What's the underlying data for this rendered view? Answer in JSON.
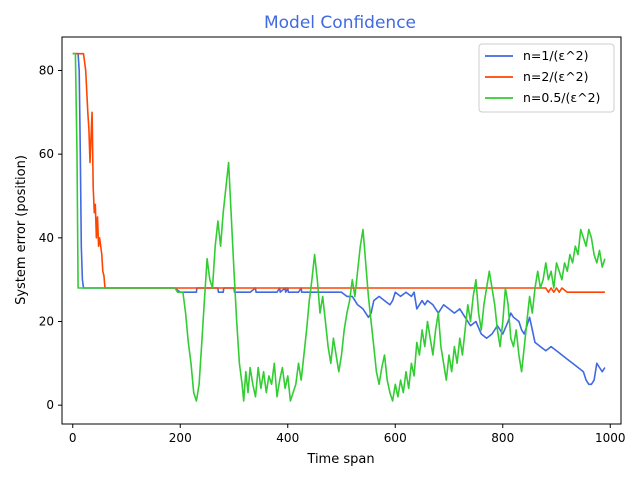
{
  "chart_data": {
    "type": "line",
    "title": "Model Confidence",
    "title_color": "#4169e1",
    "xlabel": "Time span",
    "ylabel": "System error (position)",
    "xlim": [
      -20,
      1020
    ],
    "ylim": [
      -4.5,
      88
    ],
    "xticks": [
      0,
      200,
      400,
      600,
      800,
      1000
    ],
    "yticks": [
      0,
      20,
      40,
      60,
      80
    ],
    "grid": false,
    "legend_position": "top-right",
    "series": [
      {
        "name": "n=1/(ε^2)",
        "color": "#4169e1",
        "points": [
          [
            0,
            84
          ],
          [
            10,
            84
          ],
          [
            12,
            80
          ],
          [
            14,
            60
          ],
          [
            16,
            38
          ],
          [
            18,
            30
          ],
          [
            20,
            28
          ],
          [
            190,
            28
          ],
          [
            200,
            27
          ],
          [
            230,
            27
          ],
          [
            231,
            28
          ],
          [
            270,
            28
          ],
          [
            271,
            27
          ],
          [
            280,
            27
          ],
          [
            281,
            28
          ],
          [
            300,
            28
          ],
          [
            301,
            27
          ],
          [
            330,
            27
          ],
          [
            340,
            28
          ],
          [
            341,
            27
          ],
          [
            380,
            27
          ],
          [
            385,
            28
          ],
          [
            386,
            27
          ],
          [
            395,
            28
          ],
          [
            396,
            27
          ],
          [
            400,
            28
          ],
          [
            401,
            27
          ],
          [
            420,
            27
          ],
          [
            425,
            28
          ],
          [
            426,
            27
          ],
          [
            500,
            27
          ],
          [
            510,
            26
          ],
          [
            520,
            26
          ],
          [
            530,
            24
          ],
          [
            540,
            23
          ],
          [
            550,
            21
          ],
          [
            555,
            22
          ],
          [
            560,
            25
          ],
          [
            570,
            26
          ],
          [
            580,
            25
          ],
          [
            590,
            24
          ],
          [
            595,
            25
          ],
          [
            600,
            27
          ],
          [
            610,
            26
          ],
          [
            620,
            27
          ],
          [
            630,
            26
          ],
          [
            635,
            27
          ],
          [
            640,
            23
          ],
          [
            650,
            25
          ],
          [
            655,
            24
          ],
          [
            660,
            25
          ],
          [
            670,
            24
          ],
          [
            680,
            22
          ],
          [
            690,
            24
          ],
          [
            700,
            23
          ],
          [
            710,
            22
          ],
          [
            720,
            23
          ],
          [
            730,
            21
          ],
          [
            740,
            19
          ],
          [
            750,
            20
          ],
          [
            760,
            17
          ],
          [
            770,
            16
          ],
          [
            780,
            17
          ],
          [
            790,
            19
          ],
          [
            800,
            17
          ],
          [
            810,
            20
          ],
          [
            815,
            22
          ],
          [
            820,
            21
          ],
          [
            830,
            20
          ],
          [
            835,
            18
          ],
          [
            840,
            17
          ],
          [
            845,
            19
          ],
          [
            850,
            21
          ],
          [
            860,
            15
          ],
          [
            870,
            14
          ],
          [
            880,
            13
          ],
          [
            890,
            14
          ],
          [
            900,
            13
          ],
          [
            910,
            12
          ],
          [
            920,
            11
          ],
          [
            930,
            10
          ],
          [
            940,
            9
          ],
          [
            950,
            8
          ],
          [
            955,
            6
          ],
          [
            960,
            5
          ],
          [
            965,
            5
          ],
          [
            970,
            6
          ],
          [
            975,
            10
          ],
          [
            980,
            9
          ],
          [
            985,
            8
          ],
          [
            990,
            9
          ]
        ]
      },
      {
        "name": "n=2/(ε^2)",
        "color": "#ff4500",
        "points": [
          [
            0,
            84
          ],
          [
            20,
            84
          ],
          [
            24,
            80
          ],
          [
            28,
            70
          ],
          [
            30,
            66
          ],
          [
            32,
            58
          ],
          [
            34,
            64
          ],
          [
            36,
            70
          ],
          [
            38,
            52
          ],
          [
            40,
            46
          ],
          [
            42,
            48
          ],
          [
            44,
            40
          ],
          [
            46,
            45
          ],
          [
            48,
            38
          ],
          [
            50,
            40
          ],
          [
            52,
            38
          ],
          [
            54,
            36
          ],
          [
            56,
            32
          ],
          [
            58,
            31
          ],
          [
            60,
            28
          ],
          [
            200,
            28
          ],
          [
            400,
            28
          ],
          [
            600,
            28
          ],
          [
            800,
            28
          ],
          [
            880,
            28
          ],
          [
            885,
            27
          ],
          [
            890,
            28
          ],
          [
            895,
            27
          ],
          [
            900,
            28
          ],
          [
            905,
            27
          ],
          [
            910,
            28
          ],
          [
            920,
            27
          ],
          [
            990,
            27
          ]
        ]
      },
      {
        "name": "n=0.5/(ε^2)",
        "color": "#32cd32",
        "points": [
          [
            0,
            84
          ],
          [
            5,
            84
          ],
          [
            8,
            60
          ],
          [
            10,
            28
          ],
          [
            190,
            28
          ],
          [
            195,
            27
          ],
          [
            205,
            27
          ],
          [
            210,
            22
          ],
          [
            215,
            15
          ],
          [
            220,
            10
          ],
          [
            225,
            3
          ],
          [
            230,
            1
          ],
          [
            235,
            5
          ],
          [
            240,
            15
          ],
          [
            245,
            25
          ],
          [
            250,
            35
          ],
          [
            255,
            30
          ],
          [
            260,
            28
          ],
          [
            265,
            38
          ],
          [
            270,
            44
          ],
          [
            275,
            38
          ],
          [
            280,
            46
          ],
          [
            285,
            52
          ],
          [
            290,
            58
          ],
          [
            295,
            45
          ],
          [
            300,
            32
          ],
          [
            305,
            20
          ],
          [
            310,
            10
          ],
          [
            315,
            5
          ],
          [
            318,
            1
          ],
          [
            322,
            8
          ],
          [
            326,
            3
          ],
          [
            330,
            9
          ],
          [
            335,
            5
          ],
          [
            340,
            2
          ],
          [
            345,
            9
          ],
          [
            350,
            4
          ],
          [
            355,
            8
          ],
          [
            360,
            3
          ],
          [
            365,
            7
          ],
          [
            370,
            5
          ],
          [
            375,
            10
          ],
          [
            380,
            2
          ],
          [
            385,
            6
          ],
          [
            390,
            9
          ],
          [
            395,
            4
          ],
          [
            400,
            7
          ],
          [
            405,
            1
          ],
          [
            410,
            3
          ],
          [
            415,
            5
          ],
          [
            420,
            10
          ],
          [
            425,
            6
          ],
          [
            430,
            12
          ],
          [
            435,
            18
          ],
          [
            440,
            25
          ],
          [
            445,
            30
          ],
          [
            450,
            36
          ],
          [
            455,
            30
          ],
          [
            460,
            22
          ],
          [
            465,
            26
          ],
          [
            470,
            20
          ],
          [
            475,
            14
          ],
          [
            480,
            10
          ],
          [
            485,
            16
          ],
          [
            490,
            12
          ],
          [
            495,
            8
          ],
          [
            500,
            12
          ],
          [
            505,
            18
          ],
          [
            510,
            22
          ],
          [
            515,
            25
          ],
          [
            520,
            30
          ],
          [
            525,
            26
          ],
          [
            530,
            32
          ],
          [
            535,
            38
          ],
          [
            540,
            42
          ],
          [
            545,
            34
          ],
          [
            550,
            26
          ],
          [
            555,
            20
          ],
          [
            560,
            14
          ],
          [
            565,
            8
          ],
          [
            570,
            5
          ],
          [
            575,
            9
          ],
          [
            580,
            12
          ],
          [
            585,
            6
          ],
          [
            590,
            3
          ],
          [
            595,
            1
          ],
          [
            600,
            5
          ],
          [
            605,
            2
          ],
          [
            610,
            6
          ],
          [
            615,
            3
          ],
          [
            620,
            8
          ],
          [
            625,
            4
          ],
          [
            630,
            10
          ],
          [
            635,
            7
          ],
          [
            640,
            15
          ],
          [
            645,
            12
          ],
          [
            650,
            18
          ],
          [
            655,
            14
          ],
          [
            660,
            20
          ],
          [
            665,
            16
          ],
          [
            670,
            12
          ],
          [
            675,
            18
          ],
          [
            680,
            22
          ],
          [
            685,
            14
          ],
          [
            690,
            10
          ],
          [
            695,
            6
          ],
          [
            700,
            12
          ],
          [
            705,
            8
          ],
          [
            710,
            14
          ],
          [
            715,
            10
          ],
          [
            720,
            16
          ],
          [
            725,
            12
          ],
          [
            730,
            18
          ],
          [
            735,
            24
          ],
          [
            740,
            20
          ],
          [
            745,
            26
          ],
          [
            750,
            30
          ],
          [
            755,
            22
          ],
          [
            760,
            18
          ],
          [
            765,
            24
          ],
          [
            770,
            28
          ],
          [
            775,
            32
          ],
          [
            780,
            28
          ],
          [
            785,
            24
          ],
          [
            790,
            18
          ],
          [
            795,
            14
          ],
          [
            800,
            20
          ],
          [
            805,
            28
          ],
          [
            810,
            24
          ],
          [
            815,
            16
          ],
          [
            820,
            14
          ],
          [
            825,
            18
          ],
          [
            830,
            12
          ],
          [
            835,
            8
          ],
          [
            840,
            14
          ],
          [
            845,
            20
          ],
          [
            850,
            26
          ],
          [
            855,
            22
          ],
          [
            860,
            28
          ],
          [
            865,
            32
          ],
          [
            870,
            28
          ],
          [
            875,
            30
          ],
          [
            880,
            34
          ],
          [
            885,
            30
          ],
          [
            890,
            32
          ],
          [
            895,
            28
          ],
          [
            900,
            34
          ],
          [
            905,
            32
          ],
          [
            910,
            30
          ],
          [
            915,
            34
          ],
          [
            920,
            32
          ],
          [
            925,
            36
          ],
          [
            930,
            34
          ],
          [
            935,
            38
          ],
          [
            940,
            36
          ],
          [
            945,
            42
          ],
          [
            950,
            40
          ],
          [
            955,
            38
          ],
          [
            960,
            42
          ],
          [
            965,
            40
          ],
          [
            970,
            36
          ],
          [
            975,
            34
          ],
          [
            980,
            37
          ],
          [
            985,
            33
          ],
          [
            990,
            35
          ]
        ]
      }
    ]
  }
}
